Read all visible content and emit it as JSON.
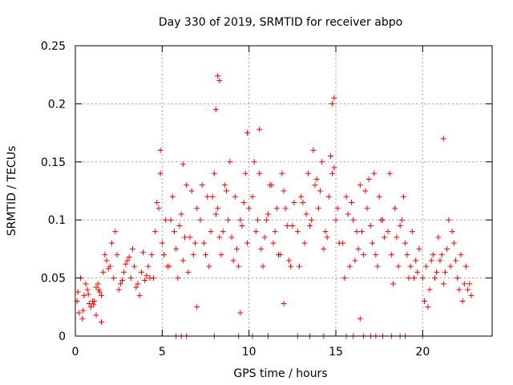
{
  "chart_data": {
    "type": "scatter",
    "title": "Day 330 of 2019, SRMTID for receiver abpo",
    "xlabel": "GPS time / hours",
    "ylabel": "SRMTID / TECUs",
    "xlim": [
      0,
      24
    ],
    "ylim": [
      0,
      0.25
    ],
    "x_ticks": [
      0,
      5,
      10,
      15,
      20
    ],
    "x_tick_labels": [
      "0",
      "5",
      "10",
      "15",
      "20"
    ],
    "y_ticks": [
      0,
      0.05,
      0.1,
      0.15,
      0.2,
      0.25
    ],
    "y_tick_labels": [
      "0",
      "0.05",
      "0.1",
      "0.15",
      "0.2",
      "0.25"
    ],
    "grid": true,
    "marker": "+",
    "marker_color": "#ff0000",
    "series": [
      {
        "name": "SRMTID",
        "x": [
          0.1,
          0.3,
          0.5,
          0.7,
          0.9,
          1.1,
          1.3,
          1.5,
          0.2,
          0.6,
          1.0,
          1.4,
          0.4,
          0.8,
          1.2,
          0.15,
          0.45,
          0.75,
          1.05,
          1.35,
          1.6,
          1.8,
          2.0,
          2.2,
          2.4,
          2.6,
          2.8,
          3.0,
          3.2,
          3.4,
          3.6,
          3.8,
          4.0,
          4.2,
          1.7,
          2.1,
          2.5,
          2.9,
          3.3,
          3.7,
          4.1,
          1.9,
          2.3,
          2.7,
          3.1,
          3.5,
          3.9,
          4.3,
          4.4,
          4.6,
          4.8,
          5.0,
          5.2,
          5.4,
          5.6,
          5.8,
          6.0,
          6.2,
          6.4,
          6.6,
          6.8,
          7.0,
          4.5,
          4.9,
          5.3,
          5.7,
          6.1,
          6.5,
          6.9,
          4.7,
          5.1,
          5.5,
          5.9,
          6.3,
          6.7,
          7.2,
          7.4,
          7.6,
          7.8,
          8.0,
          8.2,
          8.4,
          8.6,
          8.8,
          9.0,
          9.2,
          9.4,
          9.6,
          9.8,
          10.0,
          7.3,
          7.7,
          8.1,
          8.5,
          8.9,
          9.3,
          9.7,
          7.5,
          7.9,
          8.3,
          8.7,
          9.1,
          9.5,
          9.9,
          10.2,
          10.4,
          10.6,
          10.8,
          11.0,
          11.2,
          11.4,
          11.6,
          11.8,
          12.0,
          12.2,
          12.4,
          12.6,
          10.3,
          10.7,
          11.1,
          11.5,
          11.9,
          12.3,
          10.5,
          10.9,
          11.3,
          11.7,
          12.1,
          12.5,
          12.8,
          13.0,
          13.2,
          13.4,
          13.6,
          13.8,
          14.0,
          14.2,
          14.4,
          14.6,
          14.8,
          15.0,
          15.2,
          12.9,
          13.3,
          13.7,
          14.1,
          14.5,
          14.9,
          13.1,
          13.5,
          13.9,
          14.3,
          14.7,
          15.1,
          15.4,
          15.6,
          15.8,
          16.0,
          16.2,
          16.4,
          16.6,
          16.8,
          17.0,
          17.2,
          17.4,
          17.6,
          17.8,
          15.5,
          15.9,
          16.3,
          16.7,
          17.1,
          17.5,
          15.7,
          16.1,
          16.5,
          16.9,
          17.3,
          17.7,
          18.0,
          18.2,
          18.4,
          18.6,
          18.8,
          19.0,
          19.2,
          19.4,
          19.6,
          19.8,
          18.1,
          18.5,
          18.9,
          19.3,
          19.7,
          18.3,
          18.7,
          19.1,
          19.5,
          20.0,
          20.2,
          20.4,
          20.6,
          20.8,
          21.0,
          21.2,
          21.4,
          21.6,
          21.8,
          22.0,
          22.2,
          22.4,
          22.6,
          22.8,
          20.1,
          20.5,
          20.9,
          21.3,
          21.7,
          22.1,
          22.5,
          20.3,
          20.7,
          21.1,
          21.5,
          21.9,
          22.3,
          22.7,
          8.2,
          8.3,
          8.1,
          14.9,
          14.8,
          21.2,
          4.9,
          6.2,
          9.9,
          10.6,
          5.8,
          6.1,
          6.4,
          8.0,
          9.4,
          10.2,
          11.1,
          12.8,
          13.5,
          14.3,
          15.6,
          16.0,
          16.6,
          17.0,
          17.3,
          17.7,
          18.2,
          18.7,
          19.0,
          20.0,
          1.5,
          1.2,
          7.0,
          12.0,
          9.5,
          16.4
        ],
        "y": [
          0.03,
          0.05,
          0.035,
          0.04,
          0.025,
          0.03,
          0.045,
          0.035,
          0.02,
          0.045,
          0.03,
          0.038,
          0.015,
          0.028,
          0.042,
          0.038,
          0.022,
          0.036,
          0.027,
          0.04,
          0.055,
          0.065,
          0.06,
          0.05,
          0.07,
          0.045,
          0.055,
          0.065,
          0.05,
          0.06,
          0.045,
          0.055,
          0.048,
          0.06,
          0.07,
          0.08,
          0.04,
          0.062,
          0.075,
          0.035,
          0.052,
          0.058,
          0.09,
          0.048,
          0.068,
          0.042,
          0.072,
          0.05,
          0.07,
          0.09,
          0.11,
          0.08,
          0.1,
          0.06,
          0.12,
          0.075,
          0.095,
          0.065,
          0.13,
          0.085,
          0.07,
          0.11,
          0.05,
          0.14,
          0.06,
          0.09,
          0.105,
          0.055,
          0.08,
          0.115,
          0.07,
          0.1,
          0.05,
          0.085,
          0.125,
          0.1,
          0.08,
          0.12,
          0.09,
          0.14,
          0.11,
          0.07,
          0.13,
          0.1,
          0.085,
          0.12,
          0.06,
          0.095,
          0.14,
          0.11,
          0.13,
          0.06,
          0.105,
          0.09,
          0.15,
          0.075,
          0.115,
          0.07,
          0.12,
          0.085,
          0.125,
          0.065,
          0.1,
          0.08,
          0.12,
          0.09,
          0.14,
          0.06,
          0.1,
          0.13,
          0.08,
          0.11,
          0.07,
          0.125,
          0.095,
          0.06,
          0.115,
          0.15,
          0.075,
          0.105,
          0.09,
          0.14,
          0.065,
          0.1,
          0.085,
          0.13,
          0.07,
          0.11,
          0.095,
          0.09,
          0.12,
          0.08,
          0.14,
          0.1,
          0.13,
          0.11,
          0.15,
          0.09,
          0.12,
          0.14,
          0.1,
          0.08,
          0.06,
          0.105,
          0.16,
          0.125,
          0.085,
          0.145,
          0.115,
          0.095,
          0.135,
          0.075,
          0.155,
          0.11,
          0.08,
          0.12,
          0.06,
          0.1,
          0.09,
          0.13,
          0.07,
          0.11,
          0.095,
          0.14,
          0.06,
          0.1,
          0.085,
          0.05,
          0.115,
          0.075,
          0.125,
          0.08,
          0.12,
          0.105,
          0.065,
          0.09,
          0.135,
          0.07,
          0.1,
          0.09,
          0.07,
          0.11,
          0.06,
          0.1,
          0.08,
          0.05,
          0.09,
          0.065,
          0.075,
          0.14,
          0.085,
          0.12,
          0.06,
          0.055,
          0.045,
          0.095,
          0.07,
          0.05,
          0.05,
          0.06,
          0.04,
          0.07,
          0.055,
          0.065,
          0.045,
          0.075,
          0.06,
          0.08,
          0.05,
          0.07,
          0.045,
          0.04,
          0.035,
          0.03,
          0.065,
          0.085,
          0.055,
          0.09,
          0.04,
          0.06,
          0.025,
          0.05,
          0.07,
          0.1,
          0.065,
          0.03,
          0.045,
          0.224,
          0.22,
          0.195,
          0.205,
          0.2,
          0.17,
          0.16,
          0.148,
          0.175,
          0.178,
          0.0,
          0.0,
          0.0,
          0.0,
          0.0,
          0.0,
          0.0,
          0.0,
          0.0,
          0.0,
          0.0,
          0.0,
          0.0,
          0.0,
          0.0,
          0.0,
          0.0,
          0.0,
          0.0,
          0.0,
          0.012,
          0.018,
          0.025,
          0.028,
          0.02,
          0.015
        ]
      }
    ]
  }
}
